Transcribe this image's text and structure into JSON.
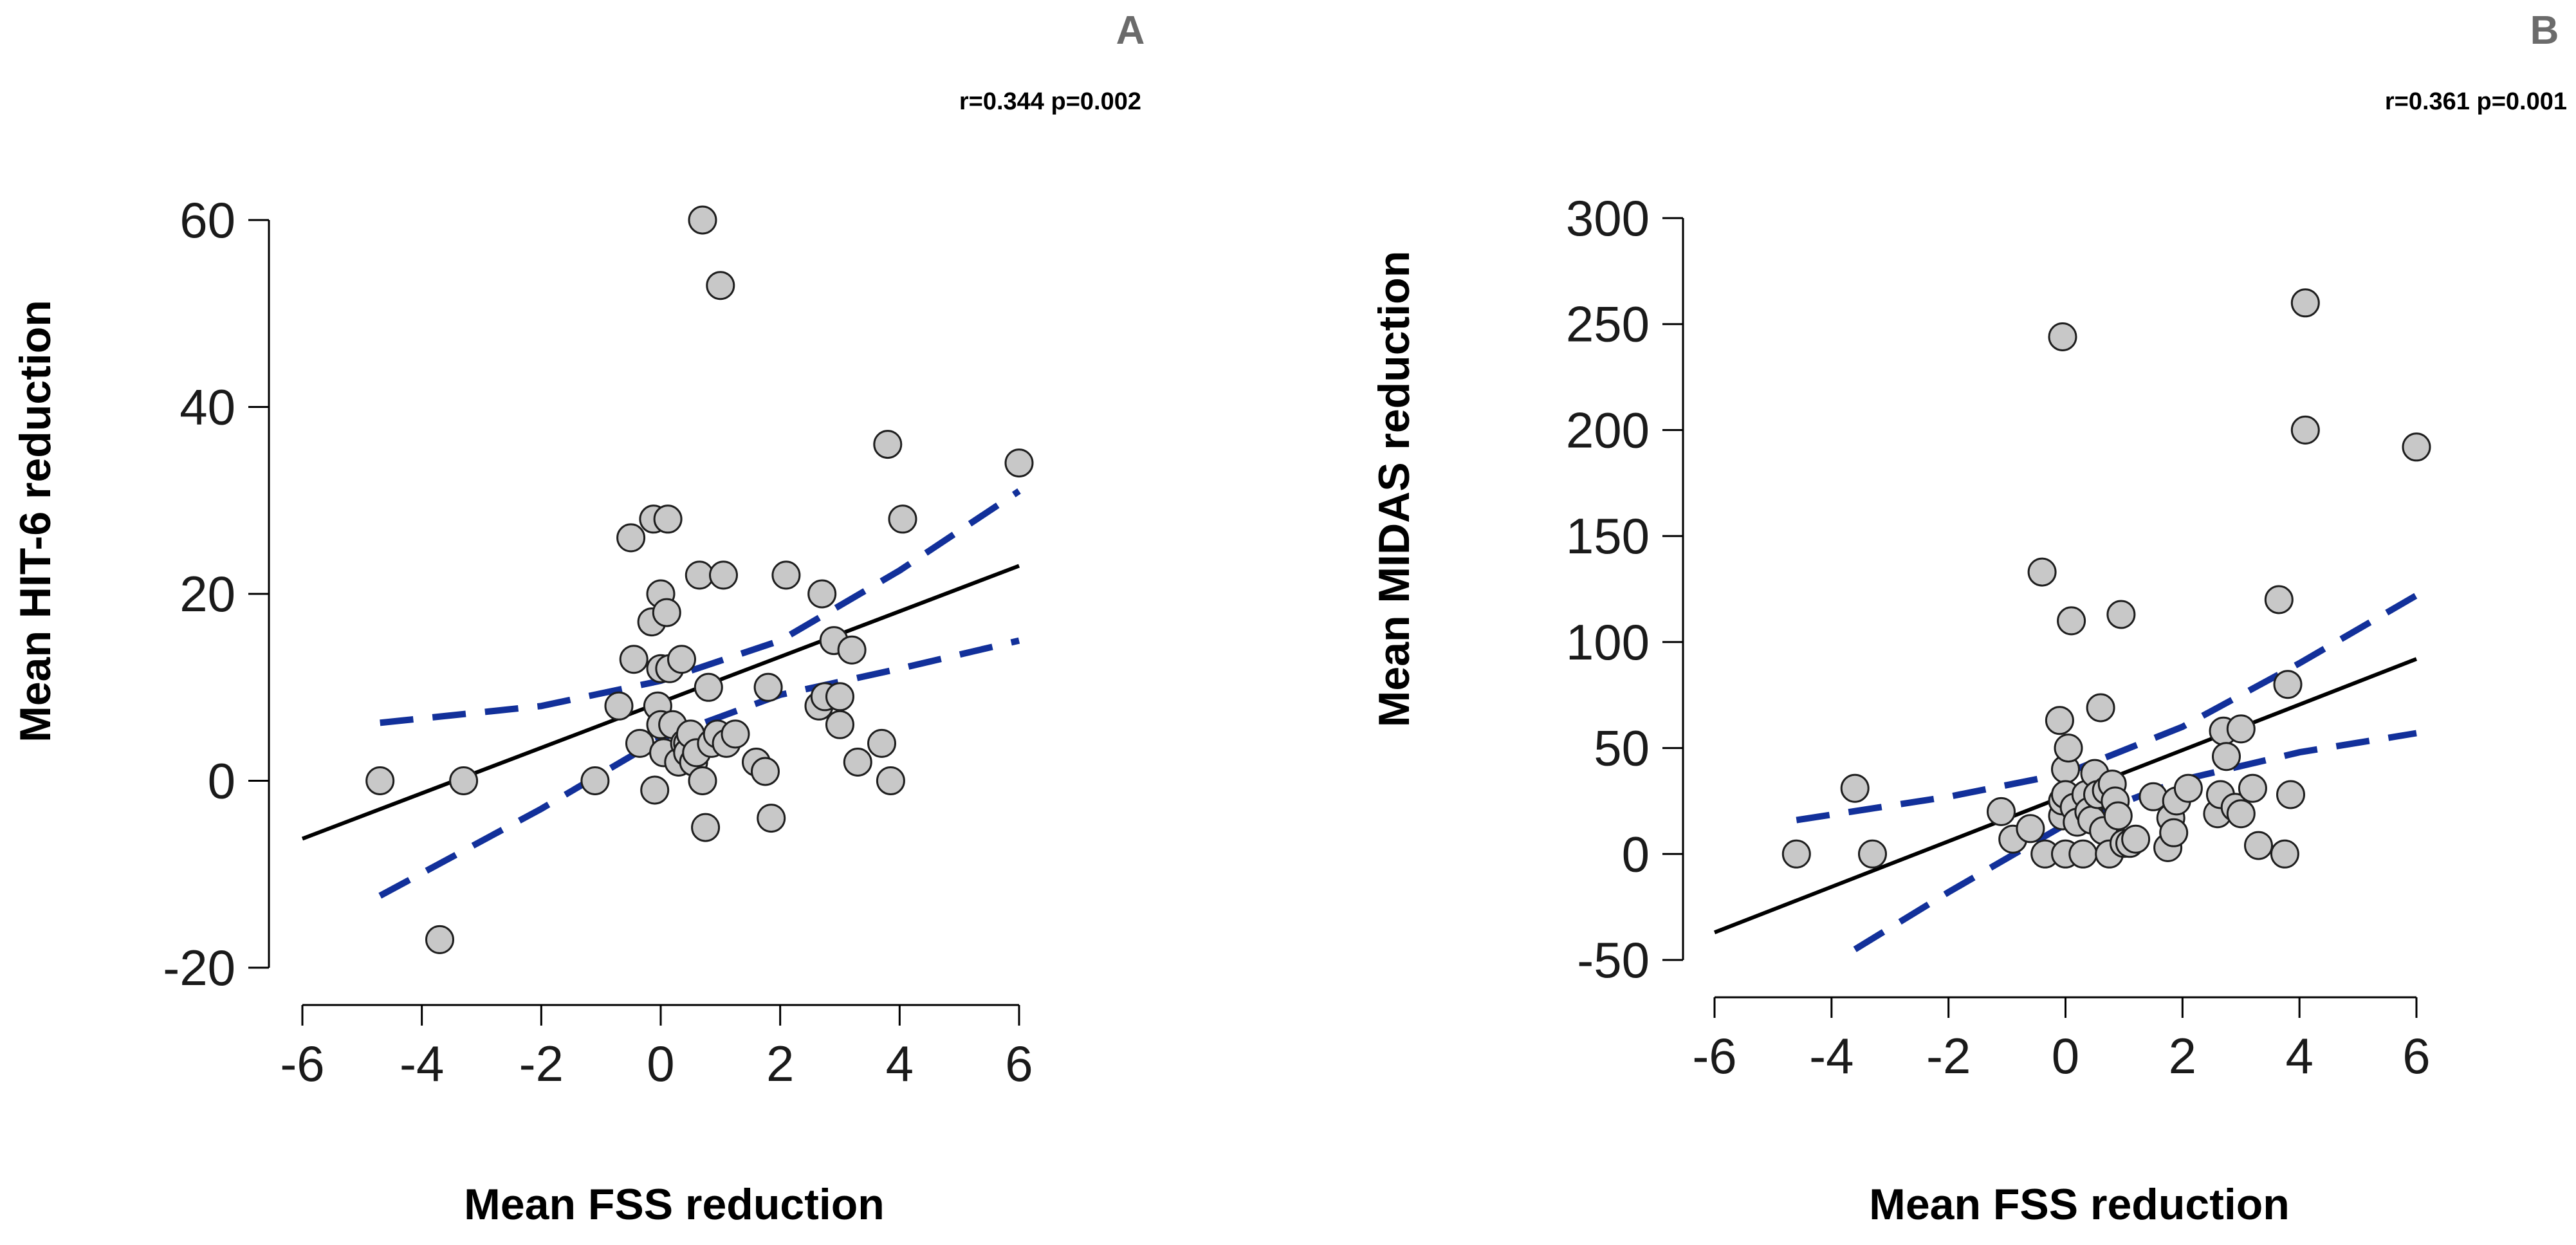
{
  "chart_data": [
    {
      "type": "scatter",
      "panel_label": "A",
      "stats": "r=0.344 p=0.002",
      "xlabel": "Mean FSS reduction",
      "ylabel": "Mean HIT-6 reduction",
      "xlim": [
        -6,
        6
      ],
      "ylim": [
        -20,
        60
      ],
      "xticks": [
        -6,
        -4,
        -2,
        0,
        2,
        4,
        6
      ],
      "yticks": [
        -20,
        0,
        20,
        40,
        60
      ],
      "xtick_labels": [
        "-6",
        "-4",
        "-2",
        "0",
        "2",
        "4",
        "6"
      ],
      "ytick_labels": [
        "-20",
        "0",
        "20",
        "40",
        "60"
      ],
      "grid": false,
      "points": {
        "x": [
          -4.7,
          -3.7,
          -3.3,
          -1.1,
          -0.7,
          -0.5,
          -0.45,
          -0.35,
          -0.15,
          -0.12,
          -0.1,
          -0.05,
          0.0,
          0.0,
          0.0,
          0.05,
          0.1,
          0.12,
          0.15,
          0.2,
          0.3,
          0.35,
          0.4,
          0.45,
          0.45,
          0.5,
          0.55,
          0.6,
          0.65,
          0.7,
          0.75,
          0.8,
          0.85,
          0.95,
          1.05,
          1.1,
          1.25,
          1.6,
          1.75,
          1.8,
          1.85,
          2.1,
          2.65,
          2.7,
          2.75,
          2.9,
          3.0,
          3.0,
          3.2,
          3.3,
          3.7,
          3.8,
          3.85,
          4.05,
          6.0,
          0.7,
          1.0
        ],
        "y": [
          0,
          -17,
          0,
          0,
          8,
          26,
          13,
          4,
          17,
          28,
          -1,
          8,
          20,
          12,
          6,
          3,
          18,
          28,
          12,
          6,
          2,
          13,
          4,
          4,
          3,
          5,
          2,
          3,
          22,
          0,
          -5,
          10,
          4,
          5,
          22,
          4,
          5,
          2,
          1,
          10,
          -4,
          22,
          8,
          20,
          9,
          15,
          9,
          6,
          14,
          2,
          4,
          36,
          0,
          28,
          34,
          60,
          53
        ]
      },
      "fit_line": {
        "x": [
          -6,
          6
        ],
        "y": [
          -6.2,
          23.0
        ]
      },
      "ci_upper": {
        "x": [
          -4.7,
          -2,
          0,
          2,
          4,
          6
        ],
        "y": [
          6.2,
          8.0,
          10.7,
          15.0,
          22.5,
          31.0
        ]
      },
      "ci_lower": {
        "x": [
          -4.7,
          -2,
          0,
          2,
          4,
          6
        ],
        "y": [
          -12.3,
          -3.0,
          4.5,
          9.2,
          12.0,
          15.0
        ]
      }
    },
    {
      "type": "scatter",
      "panel_label": "B",
      "stats": "r=0.361 p=0.001",
      "xlabel": "Mean FSS reduction",
      "ylabel": "Mean MIDAS reduction",
      "xlim": [
        -6,
        6
      ],
      "ylim": [
        -50,
        300
      ],
      "xticks": [
        -6,
        -4,
        -2,
        0,
        2,
        4,
        6
      ],
      "yticks": [
        -50,
        0,
        50,
        100,
        150,
        200,
        250,
        300
      ],
      "xtick_labels": [
        "-6",
        "-4",
        "-2",
        "0",
        "2",
        "4",
        "6"
      ],
      "ytick_labels": [
        "-50",
        "0",
        "50",
        "100",
        "150",
        "200",
        "250",
        "300"
      ],
      "grid": false,
      "points": {
        "x": [
          -4.6,
          -3.6,
          -3.3,
          -1.1,
          -0.9,
          -0.6,
          -0.4,
          -0.35,
          -0.1,
          -0.05,
          -0.05,
          0.0,
          0.0,
          0.0,
          0.05,
          0.1,
          0.15,
          0.2,
          0.3,
          0.35,
          0.4,
          0.45,
          0.5,
          0.55,
          0.6,
          0.65,
          0.7,
          0.75,
          0.8,
          0.85,
          0.9,
          0.95,
          1.0,
          1.1,
          1.2,
          1.5,
          1.75,
          1.8,
          1.85,
          1.9,
          2.1,
          2.6,
          2.65,
          2.7,
          2.75,
          2.9,
          3.0,
          3.0,
          3.2,
          3.3,
          3.65,
          3.75,
          3.8,
          3.85,
          4.1,
          4.1,
          6.0
        ],
        "y": [
          0,
          31,
          0,
          20,
          7,
          12,
          133,
          0,
          63,
          18,
          25,
          40,
          28,
          0,
          50,
          110,
          22,
          15,
          0,
          28,
          20,
          16,
          38,
          28,
          69,
          11,
          30,
          0,
          33,
          25,
          18,
          113,
          5,
          5,
          7,
          27,
          3,
          17,
          10,
          25,
          31,
          19,
          28,
          58,
          46,
          22,
          59,
          19,
          31,
          4,
          120,
          0,
          80,
          28,
          200,
          260,
          192
        ]
      },
      "extra_point": {
        "x": -0.05,
        "y": 244
      },
      "fit_line": {
        "x": [
          -6,
          6
        ],
        "y": [
          -37,
          92
        ]
      },
      "ci_upper": {
        "x": [
          -4.6,
          -2,
          0,
          2,
          4,
          6
        ],
        "y": [
          16,
          27,
          38,
          60,
          90,
          122
        ]
      },
      "ci_lower": {
        "x": [
          -3.6,
          -2,
          0,
          2,
          4,
          6
        ],
        "y": [
          -45,
          -18,
          14,
          35,
          48,
          57
        ]
      }
    }
  ]
}
